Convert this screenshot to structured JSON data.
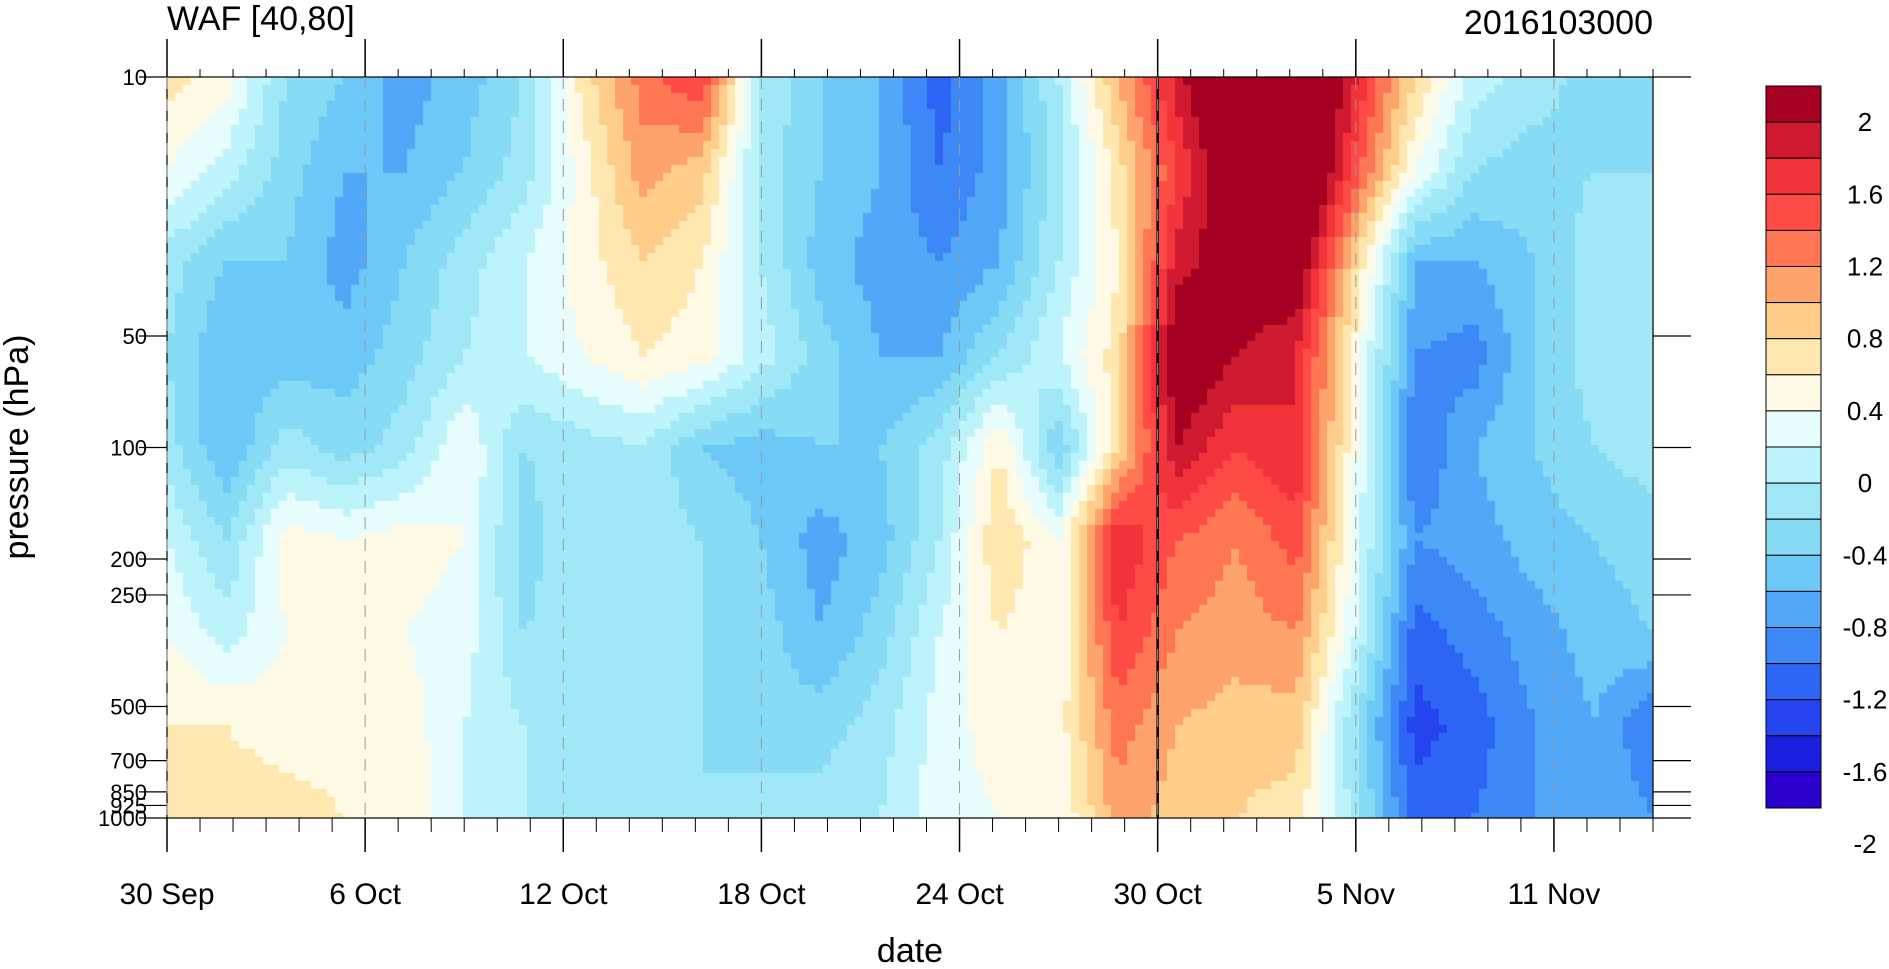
{
  "chart_data": {
    "type": "heatmap",
    "title": "WAF [40,80]",
    "subtitle": "2016103000",
    "xlabel": "date",
    "ylabel": "pressure (hPa)",
    "x_ticks": [
      "30 Sep",
      "6 Oct",
      "12 Oct",
      "18 Oct",
      "24 Oct",
      "30 Oct",
      "5 Nov",
      "11 Nov"
    ],
    "x_range": [
      "2016-09-30",
      "2016-11-14"
    ],
    "y_ticks": [
      10,
      50,
      100,
      200,
      250,
      500,
      700,
      850,
      925,
      1000
    ],
    "y_tick_labels": [
      "10",
      "50",
      "100",
      "200",
      "250",
      "500",
      "700",
      "850",
      "925",
      "1000"
    ],
    "y_scale": "log",
    "y_range": [
      1000,
      10
    ],
    "vertical_marker": "30 Oct",
    "colorbar_levels": [
      "2",
      "1.6",
      "1.2",
      "0.8",
      "0.4",
      "0",
      "-0.4",
      "-0.8",
      "-1.2",
      "-1.6",
      "-2"
    ],
    "colorbar_colors": [
      "#a50021",
      "#d01a30",
      "#f2343a",
      "#ff4b45",
      "#ff7752",
      "#ffa36c",
      "#ffcc8a",
      "#ffe8b0",
      "#fffae6",
      "#e6fcfd",
      "#bdf4fb",
      "#a0e8f8",
      "#86dcf5",
      "#6cc8f7",
      "#52a8f8",
      "#3c88f6",
      "#2d66f5",
      "#2545f0",
      "#1a1fe0",
      "#2a00cc"
    ],
    "values": [
      [
        0.5,
        0.3,
        -0.4,
        -0.6,
        -0.9,
        -0.7,
        -0.4,
        0.5,
        1.1,
        1.4,
        -0.2,
        -0.6,
        -0.8,
        -1.3,
        -0.9,
        -0.2,
        0.8,
        1.7,
        2.5,
        2.6,
        1.6,
        0.6,
        -0.1,
        -0.3,
        -0.5,
        -0.4
      ],
      [
        0.2,
        -0.1,
        -0.5,
        -0.8,
        -0.8,
        -0.6,
        -0.3,
        0.3,
        0.9,
        0.7,
        -0.3,
        -0.6,
        -0.8,
        -1.2,
        -0.9,
        -0.3,
        0.5,
        1.4,
        2.2,
        2.6,
        1.3,
        0.2,
        -0.4,
        -0.5,
        -0.4,
        -0.4
      ],
      [
        -0.3,
        -0.6,
        -0.6,
        -0.9,
        -0.6,
        -0.3,
        0.0,
        0.3,
        0.6,
        0.4,
        -0.2,
        -0.7,
        -0.9,
        -1.0,
        -0.8,
        -0.2,
        0.4,
        1.7,
        2.0,
        2.1,
        0.6,
        -0.8,
        -0.8,
        -0.6,
        -0.3,
        -0.3
      ],
      [
        -0.4,
        -0.8,
        -0.7,
        -0.7,
        -0.5,
        -0.2,
        0.0,
        0.2,
        0.4,
        0.3,
        -0.1,
        -0.5,
        -0.8,
        -0.8,
        -0.4,
        0.0,
        0.5,
        2.1,
        1.8,
        1.6,
        0.3,
        -1.0,
        -1.1,
        -0.6,
        -0.3,
        -0.4
      ],
      [
        -0.3,
        -0.8,
        -0.3,
        -0.5,
        -0.3,
        0.2,
        -0.4,
        -0.3,
        -0.2,
        -0.6,
        -0.7,
        -0.6,
        -0.6,
        -0.3,
        0.4,
        -0.6,
        0.6,
        1.8,
        1.4,
        1.6,
        0.2,
        -1.2,
        -0.8,
        -0.6,
        -0.4,
        -0.3
      ],
      [
        0.0,
        -0.4,
        0.3,
        0.2,
        0.3,
        0.2,
        -0.5,
        -0.2,
        -0.3,
        -0.4,
        -0.6,
        -0.9,
        -0.7,
        -0.2,
        0.6,
        0.2,
        1.6,
        1.2,
        1.0,
        1.3,
        0.1,
        -1.0,
        -0.9,
        -0.7,
        -0.6,
        -0.5
      ],
      [
        0.2,
        -0.1,
        0.2,
        0.2,
        0.2,
        0.1,
        -0.4,
        -0.3,
        -0.3,
        -0.4,
        -0.5,
        -0.8,
        -0.5,
        0.0,
        0.4,
        0.2,
        1.4,
        1.0,
        0.9,
        1.0,
        0.0,
        -1.3,
        -1.1,
        -0.9,
        -0.7,
        -0.6
      ],
      [
        0.4,
        0.4,
        0.3,
        0.3,
        0.3,
        0.0,
        -0.2,
        -0.3,
        -0.4,
        -0.4,
        -0.5,
        -0.5,
        -0.3,
        0.1,
        0.3,
        0.3,
        1.1,
        0.8,
        0.7,
        0.7,
        -0.4,
        -1.5,
        -1.3,
        -1.0,
        -0.8,
        -1.2
      ],
      [
        0.6,
        0.5,
        0.5,
        0.4,
        0.4,
        0.0,
        -0.2,
        -0.3,
        -0.4,
        -0.4,
        -0.3,
        -0.3,
        -0.2,
        0.1,
        0.2,
        0.2,
        0.9,
        0.7,
        0.6,
        0.5,
        -0.3,
        -1.3,
        -1.2,
        -1.0,
        -0.8,
        -1.0
      ]
    ]
  }
}
